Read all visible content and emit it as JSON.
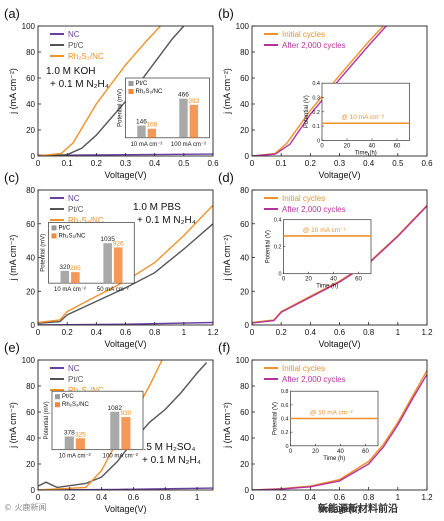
{
  "panels": [
    {
      "letter": "(a)",
      "ylabel": "j (mA cm⁻²)",
      "xlabel": "Voltage(V)",
      "xlim": [
        0,
        0.6
      ],
      "ylim": [
        0,
        100
      ],
      "xticks": [
        0,
        0.1,
        0.2,
        0.3,
        0.4,
        0.5,
        0.6
      ],
      "yticks": [
        0,
        20,
        40,
        60,
        80,
        100
      ],
      "legend": [
        {
          "name": "NC",
          "color": "#6a3fa0"
        },
        {
          "name": "Pt/C",
          "color": "#555555"
        },
        {
          "name": "Rh₂S₃/NC",
          "color": "#f0912a"
        }
      ],
      "condition": [
        "1.0 M KOH",
        "+ 0.1 M N₂H₄"
      ],
      "series": [
        {
          "name": "NC",
          "color": "#6a3fa0",
          "points": [
            [
              0,
              0.5
            ],
            [
              0.3,
              1
            ],
            [
              0.6,
              1.5
            ]
          ]
        },
        {
          "name": "Pt/C",
          "color": "#555555",
          "points": [
            [
              0,
              0
            ],
            [
              0.1,
              1
            ],
            [
              0.15,
              6
            ],
            [
              0.2,
              16
            ],
            [
              0.3,
              42
            ],
            [
              0.4,
              72
            ],
            [
              0.46,
              90
            ],
            [
              0.5,
              100
            ]
          ]
        },
        {
          "name": "Rh₂S₃/NC",
          "color": "#f0912a",
          "points": [
            [
              0,
              0
            ],
            [
              0.08,
              2
            ],
            [
              0.12,
              10
            ],
            [
              0.2,
              40
            ],
            [
              0.3,
              70
            ],
            [
              0.37,
              88
            ],
            [
              0.42,
              100
            ]
          ]
        }
      ],
      "inset": {
        "type": "bars",
        "ylabel": "Potential (mV)",
        "legend": [
          "Pt/C",
          "Rh₂S₃/NC"
        ],
        "groups": [
          {
            "label": "10 mA cm⁻²",
            "values": [
              146,
              108
            ]
          },
          {
            "label": "100 mA cm⁻²",
            "values": [
              466,
              393
            ]
          }
        ]
      }
    },
    {
      "letter": "(b)",
      "ylabel": "j (mA cm⁻²)",
      "xlabel": "Voltage(V)",
      "xlim": [
        0,
        0.6
      ],
      "ylim": [
        0,
        100
      ],
      "xticks": [
        0,
        0.1,
        0.2,
        0.3,
        0.4,
        0.5,
        0.6
      ],
      "yticks": [
        0,
        20,
        40,
        60,
        80,
        100
      ],
      "legend": [
        {
          "name": "Initial cycles",
          "color": "#f0912a"
        },
        {
          "name": "After 2,000 cycles",
          "color": "#b3339a"
        }
      ],
      "series": [
        {
          "name": "Initial cycles",
          "color": "#f0912a",
          "points": [
            [
              0,
              0
            ],
            [
              0.08,
              2
            ],
            [
              0.12,
              10
            ],
            [
              0.2,
              35
            ],
            [
              0.3,
              62
            ],
            [
              0.4,
              88
            ],
            [
              0.45,
              100
            ]
          ]
        },
        {
          "name": "After 2,000 cycles",
          "color": "#b3339a",
          "points": [
            [
              0,
              0
            ],
            [
              0.08,
              1.5
            ],
            [
              0.13,
              9
            ],
            [
              0.2,
              32
            ],
            [
              0.3,
              59
            ],
            [
              0.4,
              85
            ],
            [
              0.46,
              100
            ]
          ]
        }
      ],
      "inset": {
        "type": "line",
        "ylabel": "Potential (V)",
        "xlabel": "Time (h)",
        "annotation": "@ 10 mA cm⁻²",
        "xlim": [
          0,
          70
        ],
        "ylim": [
          0,
          0.4
        ],
        "xticks": [
          0,
          20,
          40,
          60
        ],
        "yticks": [
          0,
          0.1,
          0.2,
          0.3,
          0.4
        ],
        "value": 0.12
      }
    },
    {
      "letter": "(c)",
      "ylabel": "j (mA cm⁻²)",
      "xlabel": "Voltage(V)",
      "xlim": [
        0,
        1.2
      ],
      "ylim": [
        0,
        80
      ],
      "xticks": [
        0,
        0.2,
        0.4,
        0.6,
        0.8,
        1.0,
        1.2
      ],
      "yticks": [
        0,
        20,
        40,
        60,
        80
      ],
      "legend": [
        {
          "name": "NC",
          "color": "#6a3fa0"
        },
        {
          "name": "Pt/C",
          "color": "#555555"
        },
        {
          "name": "Rh₂S₃/NC",
          "color": "#f0912a"
        }
      ],
      "condition": [
        "1.0 M PBS",
        "+ 0.1 M N₂H₄"
      ],
      "series": [
        {
          "name": "NC",
          "color": "#6a3fa0",
          "points": [
            [
              0,
              0
            ],
            [
              0.6,
              0.5
            ],
            [
              1.2,
              1.5
            ]
          ]
        },
        {
          "name": "Pt/C",
          "color": "#555555",
          "points": [
            [
              0,
              1
            ],
            [
              0.15,
              2
            ],
            [
              0.2,
              6
            ],
            [
              0.4,
              14
            ],
            [
              0.6,
              22
            ],
            [
              0.8,
              31
            ],
            [
              1.0,
              45
            ],
            [
              1.2,
              60
            ]
          ]
        },
        {
          "name": "Rh₂S₃/NC",
          "color": "#f0912a",
          "points": [
            [
              0,
              1.5
            ],
            [
              0.15,
              3
            ],
            [
              0.2,
              8
            ],
            [
              0.4,
              17
            ],
            [
              0.6,
              26
            ],
            [
              0.8,
              37
            ],
            [
              1.0,
              53
            ],
            [
              1.2,
              71
            ]
          ]
        }
      ],
      "inset": {
        "type": "bars",
        "ylabel": "Potential (mV)",
        "legend": [
          "Pt/C",
          "Rh₂S₃/NC"
        ],
        "groups": [
          {
            "label": "10 mA cm⁻²",
            "values": [
              320,
              285
            ]
          },
          {
            "label": "50 mA cm⁻²",
            "values": [
              1035,
              926
            ]
          }
        ]
      }
    },
    {
      "letter": "(d)",
      "ylabel": "j (mA cm⁻²)",
      "xlabel": "Voltage(V)",
      "xlim": [
        0,
        1.2
      ],
      "ylim": [
        0,
        80
      ],
      "xticks": [
        0,
        0.2,
        0.4,
        0.6,
        0.8,
        1.0,
        1.2
      ],
      "yticks": [
        0,
        20,
        40,
        60,
        80
      ],
      "legend": [
        {
          "name": "Initial cycles",
          "color": "#f0912a"
        },
        {
          "name": "After 2,000 cycles",
          "color": "#b3339a"
        }
      ],
      "series": [
        {
          "name": "Initial cycles",
          "color": "#f0912a",
          "points": [
            [
              0,
              1.5
            ],
            [
              0.15,
              3
            ],
            [
              0.2,
              8
            ],
            [
              0.4,
              17
            ],
            [
              0.6,
              26
            ],
            [
              0.8,
              37
            ],
            [
              1.0,
              53
            ],
            [
              1.2,
              71
            ]
          ]
        },
        {
          "name": "After 2,000 cycles",
          "color": "#b3339a",
          "points": [
            [
              0,
              1.2
            ],
            [
              0.15,
              2.6
            ],
            [
              0.2,
              7.5
            ],
            [
              0.4,
              16.5
            ],
            [
              0.6,
              25.5
            ],
            [
              0.8,
              36.5
            ],
            [
              1.0,
              52.5
            ],
            [
              1.2,
              70.5
            ]
          ]
        }
      ],
      "inset": {
        "type": "line",
        "ylabel": "Potential (V)",
        "xlabel": "Time (h)",
        "annotation": "@ 10 mA cm⁻²",
        "xlim": [
          0,
          70
        ],
        "ylim": [
          0,
          0.4
        ],
        "xticks": [
          0,
          20,
          40,
          60
        ],
        "yticks": [
          0,
          0.2,
          0.4
        ],
        "value": 0.28
      }
    },
    {
      "letter": "(e)",
      "ylabel": "j (mA cm⁻²)",
      "xlabel": "Voltage(V)",
      "xlim": [
        0,
        1.1
      ],
      "ylim": [
        0,
        100
      ],
      "xticks": [
        0,
        0.2,
        0.4,
        0.6,
        0.8,
        1.0
      ],
      "yticks": [
        0,
        20,
        40,
        60,
        80,
        100
      ],
      "legend": [
        {
          "name": "NC",
          "color": "#6a3fa0"
        },
        {
          "name": "Pt/C",
          "color": "#555555"
        },
        {
          "name": "Rh₂S₃/NC",
          "color": "#f0912a"
        }
      ],
      "condition": [
        "0.5 M H₂SO₄",
        "+ 0.1 M N₂H₄"
      ],
      "series": [
        {
          "name": "NC",
          "color": "#6a3fa0",
          "points": [
            [
              0,
              0
            ],
            [
              0.5,
              0.5
            ],
            [
              1.1,
              1.5
            ]
          ]
        },
        {
          "name": "Pt/C",
          "color": "#555555",
          "points": [
            [
              0,
              3
            ],
            [
              0.05,
              6
            ],
            [
              0.12,
              2
            ],
            [
              0.3,
              5
            ],
            [
              0.4,
              10
            ],
            [
              0.5,
              22
            ],
            [
              0.6,
              38
            ],
            [
              0.7,
              52
            ],
            [
              0.8,
              62
            ],
            [
              0.9,
              75
            ],
            [
              1.0,
              90
            ],
            [
              1.06,
              98
            ]
          ]
        },
        {
          "name": "Rh₂S₃/NC",
          "color": "#f0912a",
          "points": [
            [
              0,
              0
            ],
            [
              0.3,
              2
            ],
            [
              0.4,
              15
            ],
            [
              0.5,
              38
            ],
            [
              0.6,
              58
            ],
            [
              0.7,
              80
            ],
            [
              0.78,
              100
            ]
          ]
        }
      ],
      "inset": {
        "type": "bars",
        "ylabel": "Potential (mV)",
        "legend": [
          "Pt/C",
          "Rh₂S₃/NC"
        ],
        "groups": [
          {
            "label": "10 mA cm⁻²",
            "values": [
              378,
              325
            ]
          },
          {
            "label": "100 mA cm⁻²",
            "values": [
              1082,
              930
            ]
          }
        ]
      }
    },
    {
      "letter": "(f)",
      "ylabel": "j (mA cm⁻²)",
      "xlabel": "Voltage(V)",
      "xlim": [
        0,
        1.2
      ],
      "ylim": [
        0,
        100
      ],
      "xticks": [
        0,
        0.2,
        0.4,
        0.6,
        0.8,
        1.0,
        1.2
      ],
      "yticks": [
        0,
        20,
        40,
        60,
        80,
        100
      ],
      "legend": [
        {
          "name": "Initial cycles",
          "color": "#f0912a"
        },
        {
          "name": "After 2,000 cycles",
          "color": "#b3339a"
        }
      ],
      "series": [
        {
          "name": "Initial cycles",
          "color": "#f0912a",
          "points": [
            [
              0,
              0
            ],
            [
              0.2,
              1
            ],
            [
              0.4,
              3
            ],
            [
              0.6,
              8
            ],
            [
              0.8,
              22
            ],
            [
              0.9,
              35
            ],
            [
              1.0,
              52
            ],
            [
              1.1,
              72
            ],
            [
              1.2,
              92
            ]
          ]
        },
        {
          "name": "After 2,000 cycles",
          "color": "#b3339a",
          "points": [
            [
              0,
              0
            ],
            [
              0.2,
              0.8
            ],
            [
              0.4,
              2.5
            ],
            [
              0.6,
              7
            ],
            [
              0.8,
              20
            ],
            [
              0.9,
              33
            ],
            [
              1.0,
              50
            ],
            [
              1.1,
              70
            ],
            [
              1.2,
              89
            ]
          ]
        }
      ],
      "inset": {
        "type": "line",
        "ylabel": "Potential (V)",
        "xlabel": "Time (h)",
        "annotation": "@ 10 mA cm⁻²",
        "xlim": [
          0,
          70
        ],
        "ylim": [
          0,
          0.8
        ],
        "xticks": [
          0,
          20,
          40,
          60
        ],
        "yticks": [
          0,
          0.2,
          0.4,
          0.6,
          0.8
        ],
        "value": 0.4
      }
    }
  ],
  "watermarks": {
    "left": "© 火鹿新闻",
    "right": "新能源新材料前沿"
  }
}
